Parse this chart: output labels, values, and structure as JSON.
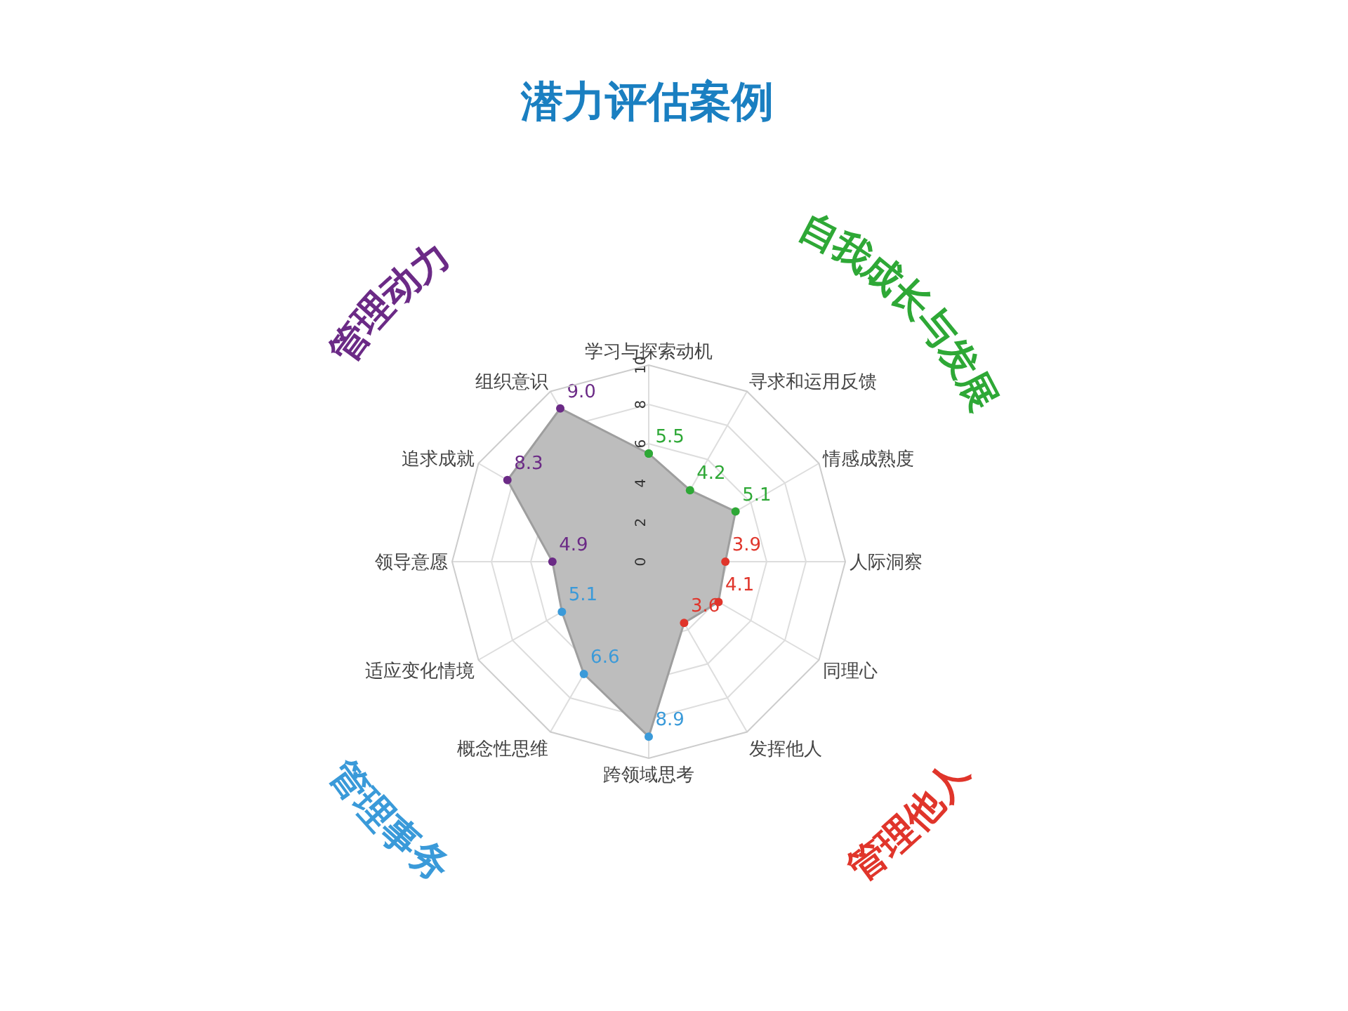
{
  "chart_data": {
    "type": "radar",
    "title": "潜力评估案例",
    "categories": [
      "学习与探索动机",
      "寻求和运用反馈",
      "情感成熟度",
      "人际洞察",
      "同理心",
      "发挥他人",
      "跨领域思考",
      "概念性思维",
      "适应变化情境",
      "领导意愿",
      "追求成就",
      "组织意识"
    ],
    "series": [
      {
        "color": "#bdbdbd",
        "values": [
          5.5,
          4.2,
          5.1,
          3.9,
          4.1,
          3.6,
          8.9,
          6.6,
          5.1,
          4.9,
          8.3,
          9.0
        ],
        "value_labels": [
          "5.5",
          "4.2",
          "5.1",
          "3.9",
          "4.1",
          "3.6",
          "8.9",
          "6.6",
          "5.1",
          "4.9",
          "8.3",
          "9.0"
        ],
        "colors": [
          "#2ea836",
          "#2ea836",
          "#2ea836",
          "#e0352b",
          "#e0352b",
          "#e0352b",
          "#3a9ad9",
          "#3a9ad9",
          "#3a9ad9",
          "#6b2a86",
          "#6b2a86",
          "#6b2a86"
        ]
      }
    ],
    "ylim": [
      0,
      10
    ],
    "yticks": [
      0,
      2,
      4,
      6,
      8,
      10
    ],
    "grid": true,
    "marker": "circle",
    "annotations": [
      "自我成长与发展",
      "管理他人",
      "管理事务",
      "管理动力"
    ]
  }
}
